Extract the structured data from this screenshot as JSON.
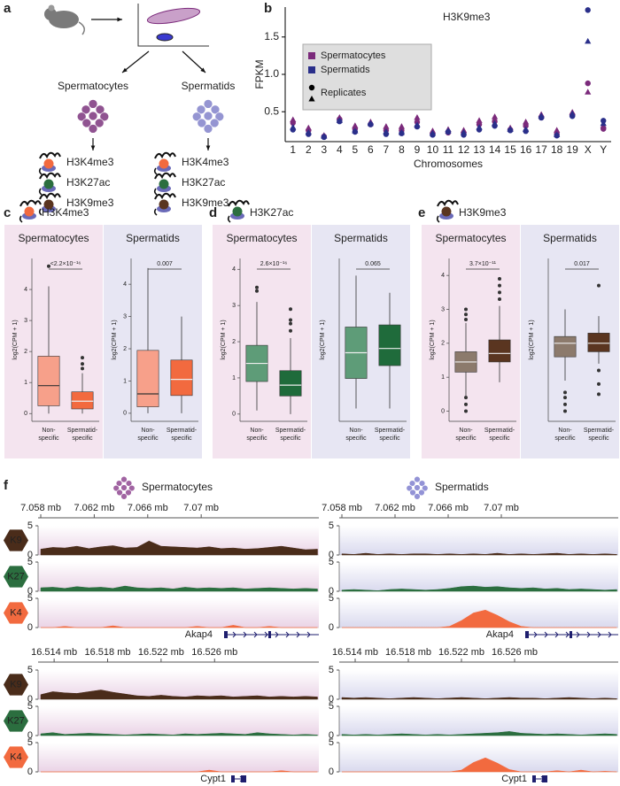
{
  "panel_labels": [
    "a",
    "b",
    "c",
    "d",
    "e",
    "f"
  ],
  "panel_a": {
    "populations": [
      {
        "name": "Spermatocytes",
        "color": "#8b4a8c",
        "marks": [
          {
            "label": "H3K4me3",
            "color": "#f26a3f"
          },
          {
            "label": "H3K27ac",
            "color": "#2b6e3f"
          },
          {
            "label": "H3K9me3",
            "color": "#5a3520"
          }
        ]
      },
      {
        "name": "Spermatids",
        "color": "#9090d0",
        "marks": [
          {
            "label": "H3K4me3",
            "color": "#f26a3f"
          },
          {
            "label": "H3K27ac",
            "color": "#2b6e3f"
          },
          {
            "label": "H3K9me3",
            "color": "#5a3520"
          }
        ]
      }
    ]
  },
  "chart_data": [
    {
      "type": "scatter",
      "title": "H3K9me3",
      "title_color": "#5a3520",
      "xlabel": "Chromosomes",
      "ylabel": "FPKM",
      "categories": [
        "1",
        "2",
        "3",
        "4",
        "5",
        "6",
        "7",
        "8",
        "9",
        "10",
        "11",
        "12",
        "13",
        "14",
        "15",
        "16",
        "17",
        "18",
        "19",
        "X",
        "Y"
      ],
      "ylim": [
        0.1,
        1.9
      ],
      "yticks": [
        0.5,
        {
          "value": 1,
          "label": "1.0"
        },
        1.5
      ],
      "legend": "upper-left",
      "replicates": {
        "label": "Replicates",
        "markers": [
          "circle",
          "triangle"
        ]
      },
      "series": [
        {
          "name": "Spermatocytes",
          "color": "#7b2a7b",
          "values": [
            [
              0.35,
              0.25,
              0.17,
              0.4,
              0.27,
              0.33,
              0.25,
              0.25,
              0.36,
              0.2,
              0.22,
              0.21,
              0.33,
              0.37,
              0.26,
              0.31,
              0.42,
              0.2,
              0.46,
              0.88,
              0.27
            ],
            [
              0.39,
              0.28,
              0.18,
              0.42,
              0.31,
              0.36,
              0.3,
              0.3,
              0.42,
              0.24,
              0.26,
              0.25,
              0.38,
              0.43,
              0.28,
              0.36,
              0.46,
              0.25,
              0.49,
              0.76,
              0.31
            ]
          ]
        },
        {
          "name": "Spermatids",
          "color": "#2a2f8a",
          "values": [
            [
              0.26,
              0.2,
              0.16,
              0.37,
              0.23,
              0.33,
              0.2,
              0.21,
              0.3,
              0.19,
              0.23,
              0.19,
              0.26,
              0.31,
              0.25,
              0.24,
              0.42,
              0.18,
              0.44,
              1.86,
              0.38
            ],
            [
              0.29,
              0.22,
              0.17,
              0.38,
              0.24,
              0.34,
              0.23,
              0.22,
              0.32,
              0.21,
              0.24,
              0.22,
              0.29,
              0.34,
              0.26,
              0.26,
              0.44,
              0.19,
              0.47,
              1.44,
              0.34
            ]
          ]
        }
      ]
    },
    {
      "type": "boxplot",
      "mark": "H3K4me3",
      "mark_color": "#f26a3f",
      "ylabel": "log2(CPM + 1)",
      "categories": [
        [
          "Non-",
          "specific"
        ],
        [
          "Spermatid-",
          "specific"
        ]
      ],
      "colors": [
        "#f7a08a",
        "#f26a3f"
      ],
      "facets": [
        {
          "title": "Spermatocytes",
          "background": "#f4e4ef",
          "ylim": [
            -0.25,
            5.0
          ],
          "yticks": [
            0,
            1,
            2,
            3,
            4
          ],
          "pvalue": "<2.2×10⁻¹⁶",
          "boxes": [
            {
              "whislo": 0,
              "q1": 0.25,
              "med": 0.9,
              "q3": 1.85,
              "whishi": 4.1,
              "fliers": [
                4.75
              ]
            },
            {
              "whislo": 0,
              "q1": 0.15,
              "med": 0.4,
              "q3": 0.7,
              "whishi": 1.3,
              "fliers": [
                1.45,
                1.6,
                1.8
              ]
            }
          ]
        },
        {
          "title": "Spermatids",
          "background": "#e7e6f3",
          "ylim": [
            -0.25,
            4.8
          ],
          "yticks": [
            0,
            1,
            2,
            3,
            4
          ],
          "pvalue": "0.007",
          "boxes": [
            {
              "whislo": 0,
              "q1": 0.2,
              "med": 0.6,
              "q3": 1.95,
              "whishi": 4.5,
              "fliers": []
            },
            {
              "whislo": 0,
              "q1": 0.55,
              "med": 1.05,
              "q3": 1.65,
              "whishi": 3.0,
              "fliers": []
            }
          ]
        }
      ]
    },
    {
      "type": "boxplot",
      "mark": "H3K27ac",
      "mark_color": "#2b6e3f",
      "ylabel": "log2(CPM + 1)",
      "categories": [
        [
          "Non-",
          "specific"
        ],
        [
          "Spermatid-",
          "specific"
        ]
      ],
      "colors": [
        "#5e9c78",
        "#1f6b3b"
      ],
      "facets": [
        {
          "title": "Spermatocytes",
          "background": "#f4e4ef",
          "ylim": [
            -0.2,
            4.3
          ],
          "yticks": [
            0,
            1,
            2,
            3,
            4
          ],
          "pvalue": "2.6×10⁻¹⁶",
          "boxes": [
            {
              "whislo": 0.1,
              "q1": 0.9,
              "med": 1.4,
              "q3": 1.9,
              "whishi": 3.1,
              "fliers": [
                3.4,
                3.5
              ]
            },
            {
              "whislo": 0,
              "q1": 0.5,
              "med": 0.8,
              "q3": 1.2,
              "whishi": 2.1,
              "fliers": [
                2.3,
                2.5,
                2.6,
                2.9
              ]
            }
          ]
        },
        {
          "title": "Spermatids",
          "background": "#e7e6f3",
          "ylim": [
            -0.2,
            3.6
          ],
          "pvalue": "0.065",
          "boxes": [
            {
              "whislo": 0.1,
              "q1": 0.8,
              "med": 1.4,
              "q3": 2.0,
              "whishi": 3.2,
              "fliers": []
            },
            {
              "whislo": 0.1,
              "q1": 1.1,
              "med": 1.5,
              "q3": 2.05,
              "whishi": 2.8,
              "fliers": []
            }
          ]
        }
      ]
    },
    {
      "type": "boxplot",
      "mark": "H3K9me3",
      "mark_color": "#5a3520",
      "ylabel": "log2(CPM + 1)",
      "categories": [
        [
          "Non-",
          "specific"
        ],
        [
          "Spermatid-",
          "specific"
        ]
      ],
      "colors": [
        "#8c7a6c",
        "#5a3520"
      ],
      "facets": [
        {
          "title": "Spermatocytes",
          "background": "#f4e4ef",
          "ylim": [
            -0.3,
            4.5
          ],
          "yticks": [
            0,
            1,
            2,
            3,
            4
          ],
          "pvalue": "3.7×10⁻¹¹",
          "boxes": [
            {
              "whislo": 0.45,
              "q1": 1.15,
              "med": 1.45,
              "q3": 1.75,
              "whishi": 2.6,
              "fliers": [
                0,
                0.2,
                0.4,
                2.7,
                2.85,
                3.0
              ]
            },
            {
              "whislo": 0.85,
              "q1": 1.45,
              "med": 1.7,
              "q3": 2.1,
              "whishi": 3.1,
              "fliers": [
                3.3,
                3.5,
                3.7,
                3.9
              ]
            }
          ]
        },
        {
          "title": "Spermatids",
          "background": "#e7e6f3",
          "ylim": [
            -0.3,
            4.5
          ],
          "pvalue": "0.017",
          "boxes": [
            {
              "whislo": 0.9,
              "q1": 1.6,
              "med": 2.0,
              "q3": 2.2,
              "whishi": 3.0,
              "fliers": [
                0,
                0.2,
                0.4,
                0.55
              ]
            },
            {
              "whislo": 1.4,
              "q1": 1.75,
              "med": 2.0,
              "q3": 2.3,
              "whishi": 2.8,
              "fliers": [
                0.5,
                0.8,
                1.2,
                3.7
              ]
            }
          ]
        }
      ]
    },
    {
      "type": "tracks",
      "ylim": [
        0,
        5
      ],
      "yticks": [
        0,
        5
      ],
      "panels": [
        {
          "title": "Spermatocytes",
          "color": "#7b2a7b",
          "background": "#ead3e6"
        },
        {
          "title": "Spermatids",
          "color": "#2a2f8a",
          "background": "#d9d9ee"
        }
      ],
      "tracks": [
        {
          "label": "K9",
          "color": "#4a2c1a"
        },
        {
          "label": "K27",
          "color": "#2b6e3f"
        },
        {
          "label": "K4",
          "color": "#f26a3f"
        }
      ],
      "loci": [
        {
          "gene": "Akap4",
          "xlim": [
            7.0578,
            7.0788
          ],
          "xticks": [
            {
              "value": 7.058,
              "label": "7.058 mb"
            },
            {
              "value": 7.062,
              "label": "7.062 mb"
            },
            {
              "value": 7.066,
              "label": "7.066 mb"
            },
            {
              "value": 7.07,
              "label": "7.07 mb"
            }
          ],
          "x": [
            7.058,
            7.0589,
            7.0598,
            7.0607,
            7.0616,
            7.0625,
            7.0634,
            7.0643,
            7.0652,
            7.0661,
            7.067,
            7.0679,
            7.0688,
            7.0697,
            7.0706,
            7.0715,
            7.0724,
            7.0733,
            7.0742,
            7.0751,
            7.076,
            7.0769,
            7.0778,
            7.0787
          ],
          "coverage": [
            [
              [
                1.0,
                1.3,
                1.2,
                1.5,
                1.1,
                1.4,
                1.6,
                1.2,
                1.3,
                2.4,
                1.5,
                1.4,
                1.3,
                1.2,
                1.4,
                1.1,
                1.2,
                1.0,
                1.1,
                1.3,
                1.5,
                1.2,
                0.9,
                1.0
              ],
              [
                0.6,
                0.7,
                0.5,
                0.8,
                0.6,
                0.7,
                0.5,
                0.9,
                0.6,
                0.5,
                0.6,
                0.4,
                0.7,
                0.5,
                0.6,
                0.5,
                0.6,
                0.4,
                0.5,
                0.6,
                0.5,
                0.4,
                0.5,
                0.4
              ],
              [
                0,
                0,
                0.2,
                0,
                0,
                0,
                0.3,
                0,
                0,
                0,
                0,
                0,
                0,
                0.2,
                0,
                0,
                0.4,
                0,
                0,
                0.2,
                0,
                0,
                0,
                0
              ]
            ],
            [
              [
                0.2,
                0.1,
                0.3,
                0.1,
                0.2,
                0.1,
                0.2,
                0.2,
                0.1,
                0.2,
                0.1,
                0.2,
                0.1,
                0.3,
                0.1,
                0.2,
                0.1,
                0.2,
                0.3,
                0.1,
                0.2,
                0.1,
                0.2,
                0.1
              ],
              [
                0.2,
                0.3,
                0.2,
                0.1,
                0.3,
                0.4,
                0.3,
                0.2,
                0.3,
                0.5,
                0.8,
                0.9,
                0.7,
                0.8,
                0.6,
                0.5,
                0.6,
                0.4,
                0.5,
                0.3,
                0.4,
                0.3,
                0.2,
                0.3
              ],
              [
                0,
                0,
                0,
                0,
                0,
                0,
                0,
                0,
                0,
                0.2,
                1.2,
                2.5,
                3.0,
                2.1,
                1.0,
                0.2,
                0,
                0,
                0,
                0,
                0,
                0,
                0,
                0
              ]
            ]
          ]
        },
        {
          "gene": "Cypt1",
          "xlim": [
            16.5128,
            16.5338
          ],
          "xticks": [
            {
              "value": 16.514,
              "label": "16.514 mb"
            },
            {
              "value": 16.518,
              "label": "16.518 mb"
            },
            {
              "value": 16.522,
              "label": "16.522 mb"
            },
            {
              "value": 16.526,
              "label": "16.526 mb"
            }
          ],
          "x": [
            16.513,
            16.5139,
            16.5148,
            16.5157,
            16.5166,
            16.5175,
            16.5184,
            16.5193,
            16.5202,
            16.5211,
            16.522,
            16.5229,
            16.5238,
            16.5247,
            16.5256,
            16.5265,
            16.5274,
            16.5283,
            16.5292,
            16.5301,
            16.531,
            16.5319,
            16.5328,
            16.5337
          ],
          "coverage": [
            [
              [
                0.8,
                1.3,
                1.1,
                1.0,
                1.3,
                1.6,
                1.2,
                0.9,
                0.6,
                0.5,
                0.7,
                0.5,
                0.4,
                0.6,
                0.5,
                0.6,
                0.4,
                0.5,
                0.6,
                0.4,
                0.5,
                0.4,
                0.5,
                0.4
              ],
              [
                0.3,
                0.5,
                0.2,
                0.3,
                0.4,
                0.3,
                0.2,
                0.1,
                0.2,
                0.3,
                0.2,
                0.1,
                0.3,
                0.2,
                0.3,
                0.4,
                0.3,
                0.2,
                0.5,
                0.3,
                0.2,
                0.1,
                0.2,
                0.1
              ],
              [
                0,
                0,
                0,
                0,
                0,
                0,
                0,
                0,
                0,
                0,
                0,
                0,
                0,
                0,
                0.3,
                0,
                0,
                0,
                0,
                0,
                0.2,
                0,
                0,
                0
              ]
            ],
            [
              [
                0.3,
                0.2,
                0.3,
                0.2,
                0.1,
                0.2,
                0.3,
                0.2,
                0.1,
                0.2,
                0.3,
                0.2,
                0.1,
                0.2,
                0.3,
                0.2,
                0.2,
                0.1,
                0.2,
                0.3,
                0.2,
                0.1,
                0.2,
                0.1
              ],
              [
                0.2,
                0.1,
                0.2,
                0.1,
                0.2,
                0.3,
                0.2,
                0.1,
                0.2,
                0.1,
                0.2,
                0.3,
                0.4,
                0.5,
                0.7,
                0.4,
                0.3,
                0.2,
                0.3,
                0.2,
                0.1,
                0.2,
                0.3,
                0.2
              ],
              [
                0,
                0,
                0,
                0,
                0,
                0,
                0,
                0,
                0,
                0,
                0.3,
                1.6,
                2.4,
                1.5,
                0.4,
                0,
                0,
                0,
                0.2,
                0,
                0.3,
                0,
                0.1,
                0
              ]
            ]
          ]
        }
      ]
    }
  ]
}
